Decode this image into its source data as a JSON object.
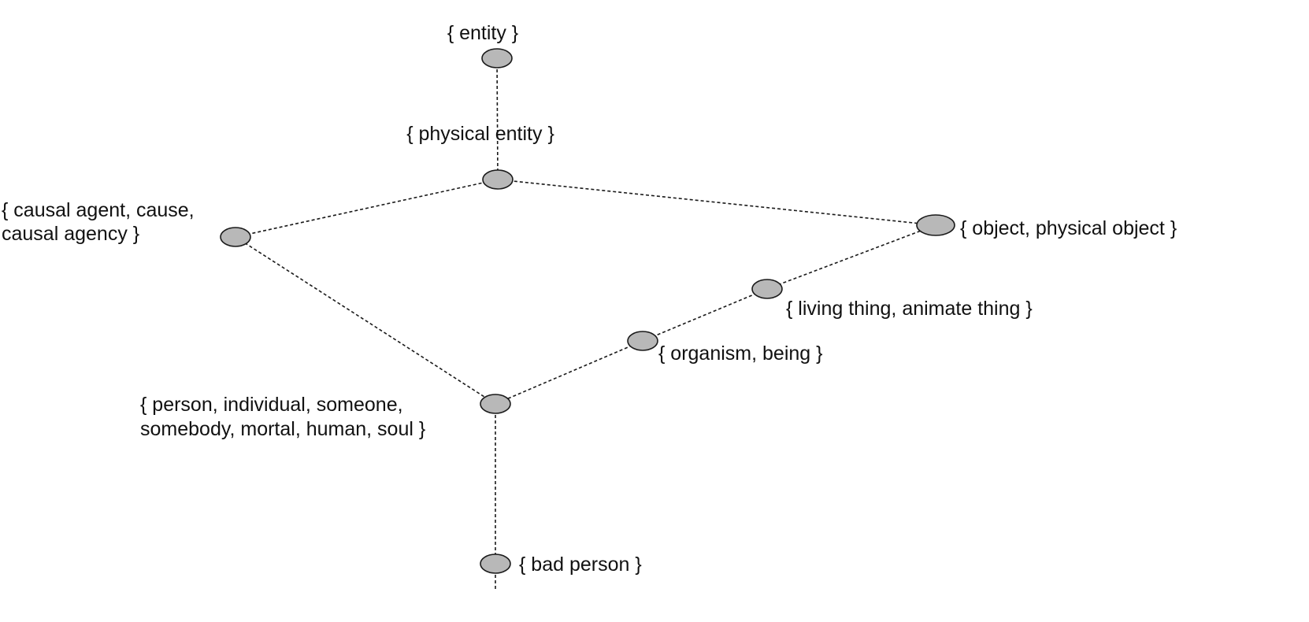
{
  "diagram": {
    "type": "synset hierarchy",
    "nodes": [
      {
        "id": "entity",
        "lines": [
          "{ entity }"
        ]
      },
      {
        "id": "physical_entity",
        "lines": [
          "{ physical entity }"
        ]
      },
      {
        "id": "causal_agent",
        "lines": [
          "{ causal agent, cause,",
          "causal agency }"
        ]
      },
      {
        "id": "object",
        "lines": [
          "{ object, physical object }"
        ]
      },
      {
        "id": "living_thing",
        "lines": [
          "{ living thing, animate thing }"
        ]
      },
      {
        "id": "organism",
        "lines": [
          "{ organism, being }"
        ]
      },
      {
        "id": "person",
        "lines": [
          "{ person, individual, someone,",
          "somebody, mortal, human, soul }"
        ]
      },
      {
        "id": "bad_person",
        "lines": [
          "{ bad person }"
        ]
      }
    ],
    "edges": [
      [
        "entity",
        "physical_entity"
      ],
      [
        "physical_entity",
        "causal_agent"
      ],
      [
        "physical_entity",
        "object"
      ],
      [
        "object",
        "living_thing"
      ],
      [
        "living_thing",
        "organism"
      ],
      [
        "organism",
        "person"
      ],
      [
        "causal_agent",
        "person"
      ],
      [
        "person",
        "bad_person"
      ]
    ]
  }
}
